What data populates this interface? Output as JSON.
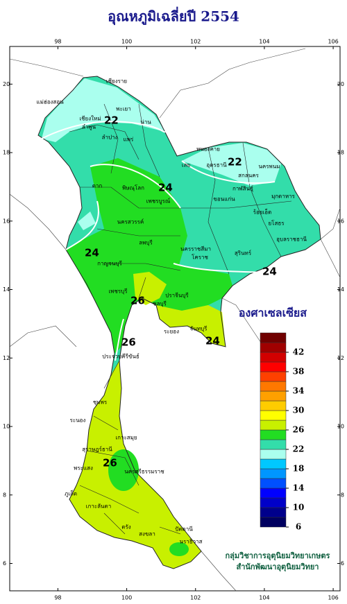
{
  "title": "อุณหภูมิเฉลี่ยปี 2554",
  "map": {
    "lon_ticks": [
      98,
      100,
      102,
      104,
      106
    ],
    "lat_ticks": [
      20,
      18,
      16,
      14,
      12,
      10,
      8,
      6
    ],
    "lonlim": [
      96.6,
      106.2
    ],
    "latlim": [
      21.1,
      5.2
    ],
    "contour_labels": [
      22,
      22,
      24,
      24,
      24,
      24,
      26,
      26,
      26
    ],
    "provinces": [
      "เชียงราย",
      "แม่ฮ่องสอน",
      "เชียงใหม่",
      "ลำพูน",
      "ลำปาง",
      "พะเยา",
      "น่าน",
      "แพร่",
      "หนองคาย",
      "เลย",
      "อุดรธานี",
      "นครพนม",
      "สกลนคร",
      "กาฬสินธุ์",
      "มุกดาหาร",
      "ตาก",
      "พิษณุโลก",
      "เพชรบูรณ์",
      "ขอนแก่น",
      "นครสวรรค์",
      "ร้อยเอ็ด",
      "ยโสธร",
      "ลพบุรี",
      "อุบลราชธานี",
      "นครราชสีมา",
      "สุรินทร์",
      "โคราช",
      "กาญจนบุรี",
      "ปราจีนบุรี",
      "ชลบุรี",
      "ระยอง",
      "จันทบุรี",
      "เพชรบุรี",
      "ประจวบคีรีขันธ์",
      "ชุมพร",
      "ระนอง",
      "เกาะสมุย",
      "สุราษฎร์ธานี",
      "พระแสง",
      "นครศรีธรรมราช",
      "ภูเก็ต",
      "เกาะลันตา",
      "ตรัง",
      "สงขลา",
      "ปัตตานี",
      "นราธิวาส"
    ]
  },
  "legend": {
    "title": "องศาเซลเซียส",
    "min": 6,
    "max": 46,
    "ticks": [
      6,
      10,
      14,
      18,
      22,
      26,
      30,
      34,
      38,
      42
    ],
    "colors": [
      "#000060",
      "#00008c",
      "#0000c8",
      "#0000ff",
      "#0050ff",
      "#0096ff",
      "#00c8ff",
      "#aaffee",
      "#33ddaa",
      "#22dd22",
      "#c8f000",
      "#ffff00",
      "#ffcc00",
      "#ffa000",
      "#ff7800",
      "#ff4000",
      "#ff0000",
      "#d20000",
      "#a00000",
      "#700000"
    ]
  },
  "credits": [
    "กลุ่มวิชาการอุตุนิยมวิทยาเกษตร",
    "สำนักพัฒนาอุตุนิยมวิทยา"
  ]
}
